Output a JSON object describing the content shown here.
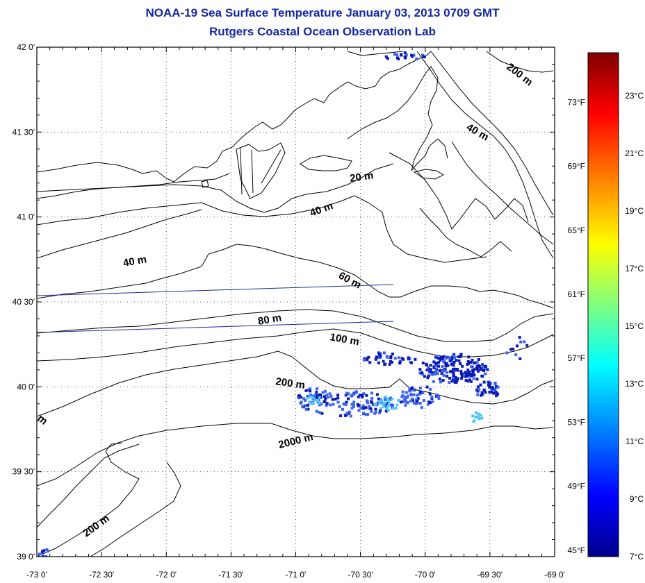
{
  "header": {
    "title": "NOAA-19 Sea Surface Temperature January 03, 2013 0709 GMT",
    "subtitle": "Rutgers Coastal Ocean Observation Lab"
  },
  "map": {
    "lat_labels": [
      {
        "deg": 42.0,
        "text": "42 0'"
      },
      {
        "deg": 41.5,
        "text": "41 30'"
      },
      {
        "deg": 41.0,
        "text": "41 0'"
      },
      {
        "deg": 40.5,
        "text": "40 30'"
      },
      {
        "deg": 40.0,
        "text": "40 0'"
      },
      {
        "deg": 39.5,
        "text": "39 30'"
      },
      {
        "deg": 39.0,
        "text": "39 0'"
      }
    ],
    "lon_labels": [
      {
        "deg": -73.0,
        "text": "-73 0'"
      },
      {
        "deg": -72.5,
        "text": "-72 30'"
      },
      {
        "deg": -72.0,
        "text": "-72 0'"
      },
      {
        "deg": -71.5,
        "text": "-71 30'"
      },
      {
        "deg": -71.0,
        "text": "-71 0'"
      },
      {
        "deg": -70.5,
        "text": "-70 30'"
      },
      {
        "deg": -70.0,
        "text": "-70 0'"
      },
      {
        "deg": -69.5,
        "text": "-69 30'"
      },
      {
        "deg": -69.0,
        "text": "-69 0'"
      }
    ],
    "lat_range": [
      39.0,
      42.0
    ],
    "lon_range": [
      -73.0,
      -69.0
    ],
    "depth_labels": [
      "200 m",
      "40 m",
      "20 m",
      "40 m",
      "40 m",
      "60 m",
      "80 m",
      "100 m",
      "200 m",
      "2000 m",
      "200 m",
      "m"
    ]
  },
  "colorbar": {
    "celsius_labels": [
      "23°C",
      "21°C",
      "19°C",
      "17°C",
      "15°C",
      "13°C",
      "11°C",
      "9°C",
      "7°C"
    ],
    "celsius_values": [
      23,
      21,
      19,
      17,
      15,
      13,
      11,
      9,
      7
    ],
    "fahrenheit_labels": [
      "73°F",
      "69°F",
      "65°F",
      "61°F",
      "57°F",
      "53°F",
      "49°F",
      "45°F"
    ],
    "fahrenheit_values": [
      73,
      69,
      65,
      61,
      57,
      53,
      49,
      45
    ],
    "range_c": [
      7,
      24.5
    ],
    "colors": [
      "#00008b",
      "#0000ff",
      "#0080ff",
      "#00ffff",
      "#80ff80",
      "#ffff00",
      "#ff8000",
      "#ff0000",
      "#800000"
    ]
  },
  "colors": {
    "title": "#1428a0",
    "contour": "#000000",
    "track": "#1a2d8c",
    "sst_dark": "#0a1ab4",
    "sst_mid": "#3c64f0",
    "sst_light": "#50c8f0"
  }
}
